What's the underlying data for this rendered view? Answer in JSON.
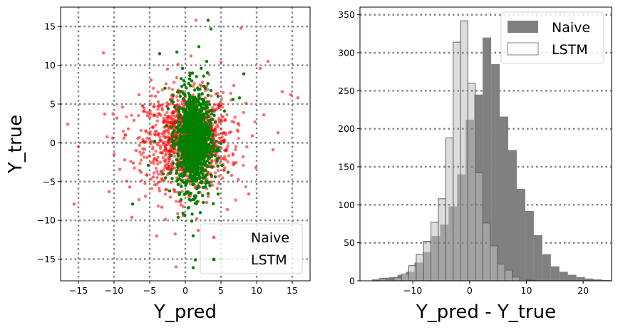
{
  "chart_data": [
    {
      "type": "scatter",
      "xlabel": "Y_pred",
      "ylabel": "Y_true",
      "xlim": [
        -17.5,
        17.5
      ],
      "ylim": [
        -17.8,
        17.5
      ],
      "xticks": [
        -15,
        -10,
        -5,
        0,
        5,
        10,
        15
      ],
      "yticks": [
        -15,
        -10,
        -5,
        0,
        5,
        10,
        15
      ],
      "grid": true,
      "legend_position": "lower-right",
      "series": [
        {
          "name": "Naive",
          "color": "#ff0000",
          "points": [
            [
              -16.5,
              2.4
            ],
            [
              -15.6,
              -7.9
            ],
            [
              -15.0,
              -0.5
            ],
            [
              -11.5,
              11.6
            ],
            [
              -11.3,
              3.7
            ],
            [
              -10.7,
              -6.3
            ],
            [
              -10.2,
              0.6
            ],
            [
              -10.0,
              -1.5
            ],
            [
              -9.6,
              3.2
            ],
            [
              -9.2,
              -3.4
            ],
            [
              -8.8,
              4.6
            ],
            [
              -8.5,
              -2.2
            ],
            [
              -8.0,
              1.8
            ],
            [
              -7.8,
              -5.7
            ],
            [
              -7.5,
              -9.6
            ],
            [
              -7.2,
              2.9
            ],
            [
              -6.9,
              -1.0
            ],
            [
              -6.5,
              6.2
            ],
            [
              -6.2,
              -3.8
            ],
            [
              -5.9,
              0.2
            ],
            [
              -5.6,
              -6.9
            ],
            [
              -5.3,
              3.5
            ],
            [
              -5.0,
              -1.7
            ],
            [
              -4.8,
              8.1
            ],
            [
              -4.5,
              -4.4
            ],
            [
              -4.3,
              1.1
            ],
            [
              -4.0,
              -12.0
            ],
            [
              -3.8,
              5.3
            ],
            [
              -3.5,
              -0.7
            ],
            [
              -3.3,
              -8.3
            ],
            [
              -3.0,
              2.6
            ],
            [
              -2.8,
              -2.9
            ],
            [
              -2.5,
              9.5
            ],
            [
              -2.3,
              0.4
            ],
            [
              -2.0,
              -5.1
            ],
            [
              -1.8,
              3.9
            ],
            [
              -1.5,
              -1.3
            ],
            [
              -1.3,
              -16.0
            ],
            [
              -1.0,
              6.8
            ],
            [
              -0.8,
              -3.5
            ],
            [
              -0.5,
              1.5
            ],
            [
              -0.3,
              -9.4
            ],
            [
              0.0,
              4.4
            ],
            [
              0.3,
              -0.2
            ],
            [
              0.5,
              -6.4
            ],
            [
              0.8,
              11.2
            ],
            [
              1.0,
              2.0
            ],
            [
              1.3,
              -2.3
            ],
            [
              1.5,
              15.8
            ],
            [
              1.8,
              -11.3
            ],
            [
              2.0,
              5.8
            ],
            [
              2.3,
              0.9
            ],
            [
              2.5,
              -4.6
            ],
            [
              2.8,
              3.3
            ],
            [
              3.0,
              -7.7
            ],
            [
              3.3,
              8.8
            ],
            [
              3.5,
              -1.1
            ],
            [
              3.8,
              1.7
            ],
            [
              4.0,
              -3.1
            ],
            [
              4.3,
              6.3
            ],
            [
              4.5,
              -5.9
            ],
            [
              4.8,
              0.6
            ],
            [
              5.0,
              10.4
            ],
            [
              5.3,
              -2.0
            ],
            [
              5.6,
              3.0
            ],
            [
              5.9,
              -8.6
            ],
            [
              6.2,
              1.3
            ],
            [
              6.5,
              -4.2
            ],
            [
              6.8,
              7.4
            ],
            [
              7.1,
              -0.5
            ],
            [
              7.4,
              2.5
            ],
            [
              7.8,
              14.8
            ],
            [
              8.1,
              -1.8
            ],
            [
              8.5,
              5.1
            ],
            [
              8.9,
              -6.6
            ],
            [
              9.4,
              0.9
            ],
            [
              9.9,
              -3.2
            ],
            [
              10.5,
              9.6
            ],
            [
              11.0,
              3.6
            ],
            [
              11.6,
              10.5
            ],
            [
              12.3,
              -0.9
            ],
            [
              13.0,
              1.3
            ],
            [
              13.6,
              6.6
            ],
            [
              14.8,
              6.2
            ],
            [
              15.8,
              5.8
            ],
            [
              -6.0,
              4.8
            ],
            [
              -4.2,
              6.0
            ],
            [
              -3.6,
              -6.2
            ],
            [
              -2.7,
              7.6
            ],
            [
              -2.1,
              -7.0
            ],
            [
              -1.2,
              8.4
            ],
            [
              -0.6,
              -8.0
            ],
            [
              0.6,
              9.0
            ],
            [
              1.6,
              -9.8
            ],
            [
              2.4,
              7.8
            ],
            [
              3.2,
              -6.9
            ],
            [
              4.1,
              4.9
            ],
            [
              -7.3,
              -2.6
            ],
            [
              6.9,
              -2.7
            ],
            [
              -8.6,
              0.6
            ]
          ]
        },
        {
          "name": "LSTM",
          "color": "#008000",
          "points": [
            [
              -7.4,
              -7.9
            ],
            [
              -5.2,
              -2.9
            ],
            [
              -4.3,
              0.2
            ],
            [
              -3.6,
              11.5
            ],
            [
              -3.1,
              -4.0
            ],
            [
              -2.6,
              2.2
            ],
            [
              -2.2,
              -6.2
            ],
            [
              -1.8,
              0.9
            ],
            [
              -1.5,
              4.6
            ],
            [
              -1.2,
              -2.2
            ],
            [
              -0.9,
              1.5
            ],
            [
              -0.6,
              -4.8
            ],
            [
              -0.3,
              6.4
            ],
            [
              0.0,
              -0.8
            ],
            [
              0.2,
              3.1
            ],
            [
              0.4,
              -8.4
            ],
            [
              0.6,
              1.8
            ],
            [
              0.8,
              -1.7
            ],
            [
              1.0,
              9.0
            ],
            [
              1.1,
              -12.0
            ],
            [
              1.3,
              0.4
            ],
            [
              1.5,
              4.0
            ],
            [
              1.7,
              -3.3
            ],
            [
              1.9,
              12.4
            ],
            [
              2.0,
              -0.4
            ],
            [
              2.2,
              2.7
            ],
            [
              2.4,
              -6.8
            ],
            [
              2.6,
              7.3
            ],
            [
              2.8,
              -1.2
            ],
            [
              3.0,
              4.9
            ],
            [
              3.2,
              15.8
            ],
            [
              3.4,
              -2.6
            ],
            [
              3.6,
              14.7
            ],
            [
              3.9,
              1.1
            ],
            [
              4.2,
              -4.4
            ],
            [
              4.6,
              6.0
            ],
            [
              5.0,
              -0.1
            ],
            [
              5.5,
              4.1
            ],
            [
              6.0,
              -3.8
            ],
            [
              6.7,
              5.6
            ],
            [
              7.6,
              5.8
            ],
            [
              8.2,
              8.9
            ],
            [
              1.4,
              -15.1
            ],
            [
              1.1,
              -16.1
            ],
            [
              5.0,
              -15.0
            ],
            [
              -0.4,
              9.6
            ],
            [
              0.9,
              -10.1
            ],
            [
              2.1,
              -9.0
            ],
            [
              -1.0,
              -9.6
            ],
            [
              3.0,
              10.5
            ]
          ]
        }
      ]
    },
    {
      "type": "bar",
      "xlabel": "Y_pred - Y_true",
      "ylabel": "",
      "xlim": [
        -19.3,
        25.0
      ],
      "ylim": [
        0,
        360
      ],
      "xticks": [
        -10,
        0,
        10,
        20
      ],
      "yticks": [
        0,
        50,
        100,
        150,
        200,
        250,
        300,
        350
      ],
      "grid": true,
      "legend_position": "upper-right",
      "series": [
        {
          "name": "Naive",
          "color": "#808080",
          "bin_start": -17.2,
          "bin_width": 1.5,
          "counts": [
            2,
            4,
            5,
            8,
            12,
            24,
            38,
            59,
            74,
            98,
            140,
            212,
            245,
            320,
            285,
            216,
            172,
            121,
            92,
            60,
            35,
            19,
            12,
            8,
            5,
            3,
            2,
            1
          ]
        },
        {
          "name": "LSTM",
          "color": "#c0c0c0",
          "bin_start": -15.9,
          "bin_width": 1.3,
          "counts": [
            3,
            2,
            4,
            9,
            20,
            35,
            52,
            77,
            108,
            188,
            314,
            342,
            260,
            142,
            76,
            46,
            22,
            14,
            5,
            2,
            1
          ]
        }
      ]
    }
  ]
}
